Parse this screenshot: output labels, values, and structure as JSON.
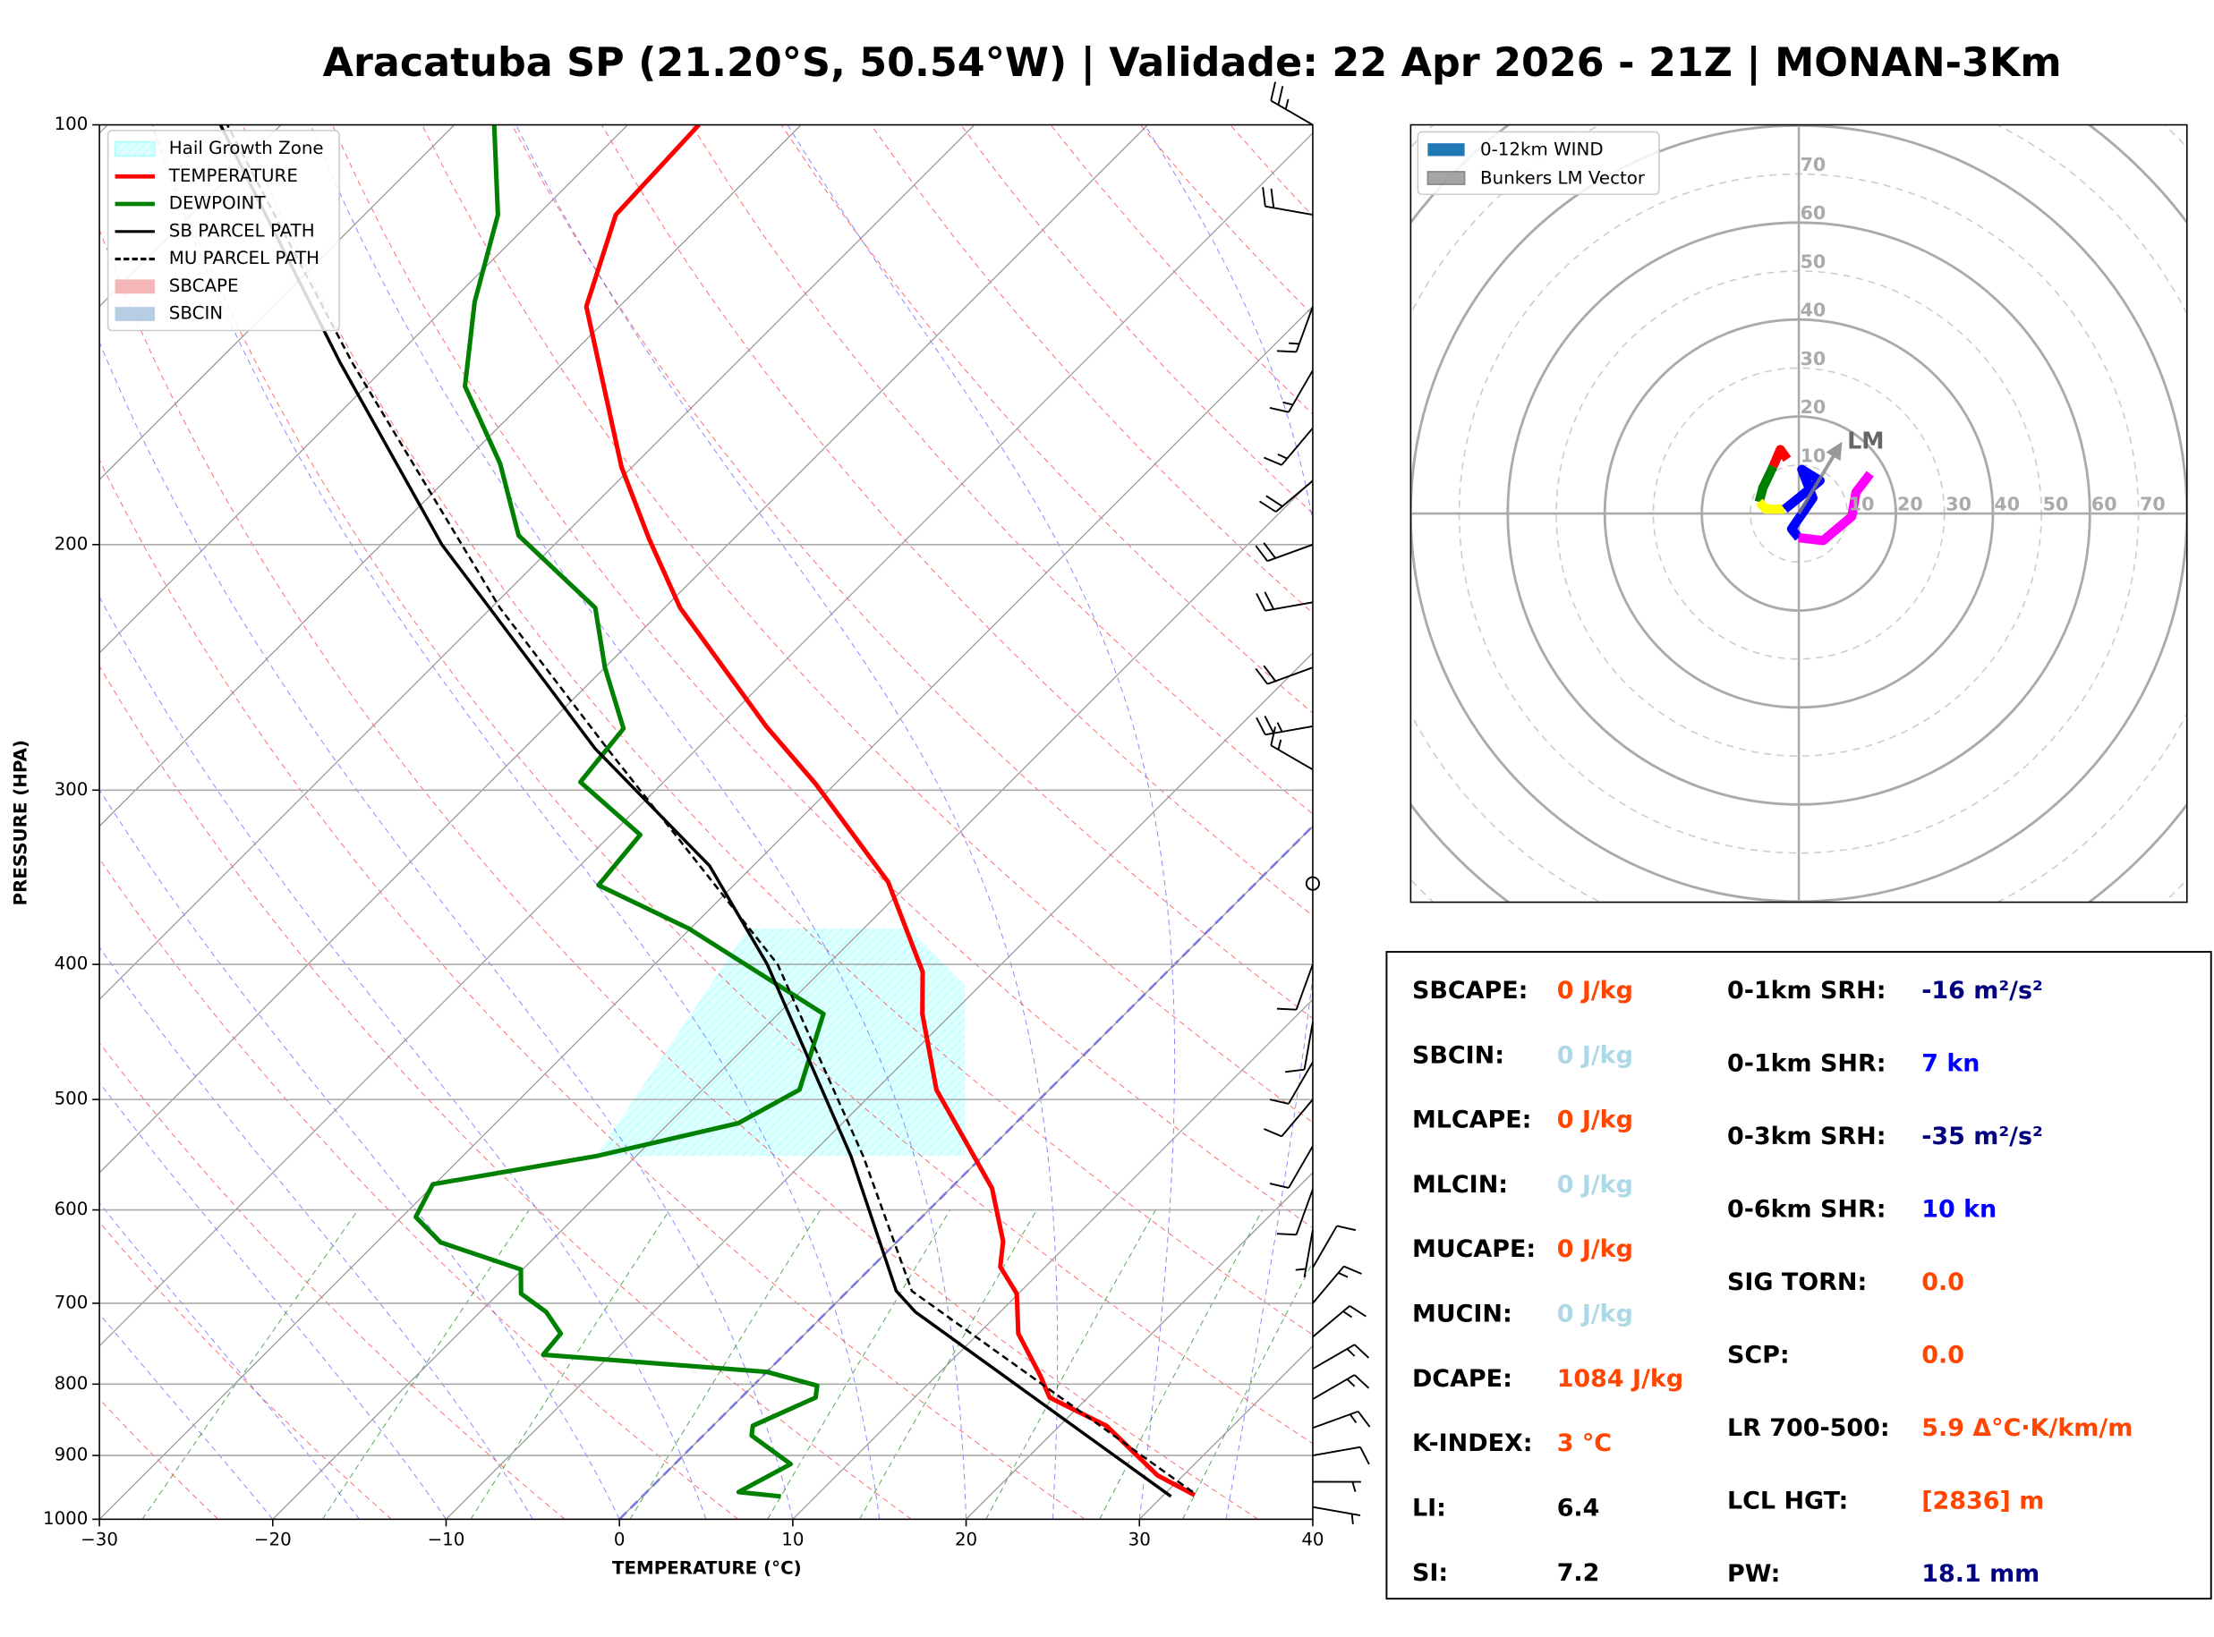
{
  "title": "Aracatuba SP (21.20°S, 50.54°W) | Validade: 22 Apr 2026 - 21Z | MONAN-3Km",
  "chart_data": [
    {
      "type": "skewt",
      "xlabel": "TEMPERATURE (°C)",
      "ylabel": "PRESSURE (HPA)",
      "xlim": [
        -30,
        40
      ],
      "ylim": [
        1000,
        100
      ],
      "log_y": true,
      "grid": true,
      "xticks": [
        {
          "value": -30,
          "label": "−30"
        },
        {
          "value": -20,
          "label": "−20"
        },
        {
          "value": -10,
          "label": "−10"
        },
        0,
        10,
        20,
        30,
        40
      ],
      "yticks": [
        100,
        200,
        300,
        400,
        500,
        600,
        700,
        800,
        900,
        1000
      ],
      "legend_position": "upper left",
      "hail_growth_zone": {
        "name": "Hail Growth Zone",
        "color": "#e0ffff",
        "pressure": [
          549,
          377
        ]
      },
      "series": [
        {
          "name": "TEMPERATURE",
          "color": "#ff0000",
          "style": "solid",
          "pressure": [
            961,
            930,
            857,
            818,
            789,
            736,
            689,
            659,
            632,
            579,
            492,
            434,
            405,
            349,
            297,
            270,
            222,
            198,
            176,
            135,
            116,
            100
          ],
          "values": [
            31.8,
            28.5,
            22.7,
            17.8,
            16.0,
            12.3,
            9.9,
            7.4,
            6.1,
            2.4,
            -6.5,
            -11.7,
            -14.1,
            -21.3,
            -31.1,
            -37.3,
            -49.1,
            -54.9,
            -60.6,
            -71.9,
            -75.5,
            -75.9
          ]
        },
        {
          "name": "DEWPOINT",
          "color": "#008000",
          "style": "solid",
          "pressure": [
            963,
            956,
            913,
            871,
            857,
            818,
            802,
            784,
            762,
            736,
            710,
            689,
            662,
            633,
            607,
            575,
            549,
            520,
            492,
            434,
            377,
            351,
            323,
            296,
            271,
            245,
            222,
            197,
            175,
            154,
            134,
            116,
            100
          ],
          "values": [
            8.0,
            5.3,
            6.7,
            2.8,
            2.3,
            4.3,
            3.7,
            0.0,
            -13.9,
            -14.1,
            -16.2,
            -18.7,
            -20.1,
            -26.3,
            -29.2,
            -30.1,
            -22.3,
            -16.0,
            -14.4,
            -17.4,
            -30.1,
            -37.8,
            -38.3,
            -44.8,
            -45.4,
            -50.0,
            -54.0,
            -62.6,
            -67.8,
            -74.3,
            -78.6,
            -82.3,
            -87.7
          ]
        },
        {
          "name": "SB PARCEL PATH",
          "color": "#000000",
          "style": "solid",
          "pressure": [
            963,
            710,
            686,
            549,
            400,
            340,
            280,
            222,
            200,
            148,
            100
          ],
          "values": [
            30.5,
            5.1,
            2.8,
            -7.6,
            -23.5,
            -32.5,
            -45.9,
            -60.1,
            -66.5,
            -82.9,
            -103.5
          ]
        },
        {
          "name": "MU PARCEL PATH",
          "color": "#000000",
          "style": "dashed",
          "pressure": [
            956,
            686,
            549,
            400,
            280,
            222,
            148,
            100
          ],
          "values": [
            31.5,
            3.7,
            -6.9,
            -22.9,
            -45.2,
            -59.5,
            -82.2,
            -103.1
          ]
        }
      ],
      "legend_areas": [
        {
          "name": "SBCAPE",
          "color": "#f4b6b6"
        },
        {
          "name": "SBCIN",
          "color": "#b6cde4"
        }
      ],
      "wind_barbs": {
        "pressure": [
          100,
          116,
          135,
          150,
          165,
          180,
          200,
          220,
          245,
          270,
          290,
          350,
          400,
          440,
          470,
          500,
          540,
          580,
          620,
          660,
          700,
          740,
          780,
          820,
          860,
          900,
          940,
          980
        ],
        "speed": [
          25,
          20,
          15,
          15,
          15,
          20,
          20,
          20,
          20,
          25,
          15,
          0,
          10,
          10,
          10,
          10,
          10,
          10,
          5,
          10,
          15,
          15,
          15,
          15,
          15,
          10,
          5,
          5
        ],
        "direction": [
          300,
          280,
          200,
          210,
          220,
          230,
          250,
          260,
          250,
          260,
          300,
          0,
          200,
          190,
          210,
          220,
          210,
          200,
          190,
          30,
          40,
          50,
          60,
          60,
          70,
          80,
          90,
          100
        ]
      }
    },
    {
      "type": "hodograph",
      "lim": [
        -80,
        80
      ],
      "rticks": [
        10,
        20,
        30,
        40,
        50,
        60,
        70
      ],
      "legend": [
        {
          "name": "0-12km WIND",
          "color": "#1f77b4"
        }
      ],
      "series": [
        {
          "color": "#ff0000",
          "u": [
            -2.4,
            -3.8,
            -5.3
          ],
          "v": [
            11.2,
            13.2,
            9.7
          ]
        },
        {
          "color": "#008000",
          "u": [
            -5.3,
            -7.4,
            -8.2
          ],
          "v": [
            9.7,
            5.3,
            2.4
          ]
        },
        {
          "color": "#ffff00",
          "u": [
            -8.2,
            -6.8,
            -2.9
          ],
          "v": [
            2.4,
            0.9,
            0.9
          ]
        },
        {
          "color": "#0000ff",
          "u": [
            -2.9,
            4.4,
            0.6,
            2.9,
            -1.5,
            0.0
          ],
          "v": [
            0.9,
            6.8,
            9.1,
            3.2,
            -3.2,
            -5.0
          ]
        },
        {
          "color": "#ff00ff",
          "u": [
            0.0,
            5.0,
            10.9,
            11.8,
            14.7
          ],
          "v": [
            -5.0,
            -5.6,
            -0.6,
            4.4,
            8.2
          ]
        }
      ],
      "bunkers_lm": {
        "name": "Bunkers LM Vector",
        "label": "LM",
        "color": "#808080",
        "u": 8.5,
        "v": 14.1
      }
    }
  ],
  "indices": {
    "left": [
      {
        "label": "SBCAPE:",
        "value": "0 J/kg",
        "color": "#ff4500"
      },
      {
        "label": "SBCIN:",
        "value": "0 J/kg",
        "color": "#add8e6"
      },
      {
        "label": "MLCAPE:",
        "value": "0 J/kg",
        "color": "#ff4500"
      },
      {
        "label": "MLCIN:",
        "value": "0 J/kg",
        "color": "#add8e6"
      },
      {
        "label": "MUCAPE:",
        "value": "0 J/kg",
        "color": "#ff4500"
      },
      {
        "label": "MUCIN:",
        "value": "0 J/kg",
        "color": "#add8e6"
      },
      {
        "label": "DCAPE:",
        "value": "1084 J/kg",
        "color": "#ff4500"
      },
      {
        "label": "K-INDEX:",
        "value": "3 °C",
        "color": "#ff4500"
      },
      {
        "label": "LI:",
        "value": "6.4",
        "color": "#000000"
      },
      {
        "label": "SI:",
        "value": "7.2",
        "color": "#000000"
      }
    ],
    "right": [
      {
        "label": "0-1km SRH:",
        "value": "-16 m²/s²",
        "color": "#000080"
      },
      {
        "label": "0-1km SHR:",
        "value": "7 kn",
        "color": "#0000ff"
      },
      {
        "label": "0-3km SRH:",
        "value": "-35 m²/s²",
        "color": "#000080"
      },
      {
        "label": "0-6km SHR:",
        "value": "10 kn",
        "color": "#0000ff"
      },
      {
        "label": "SIG TORN:",
        "value": "0.0",
        "color": "#ff4500"
      },
      {
        "label": "SCP:",
        "value": "0.0",
        "color": "#ff4500"
      },
      {
        "label": "LR 700-500:",
        "value": "5.9 Δ°C·K/km/m",
        "color": "#ff4500"
      },
      {
        "label": "LCL HGT:",
        "value": "[2836] m",
        "color": "#ff4500"
      },
      {
        "label": "PW:",
        "value": "18.1 mm",
        "color": "#000080"
      }
    ]
  }
}
